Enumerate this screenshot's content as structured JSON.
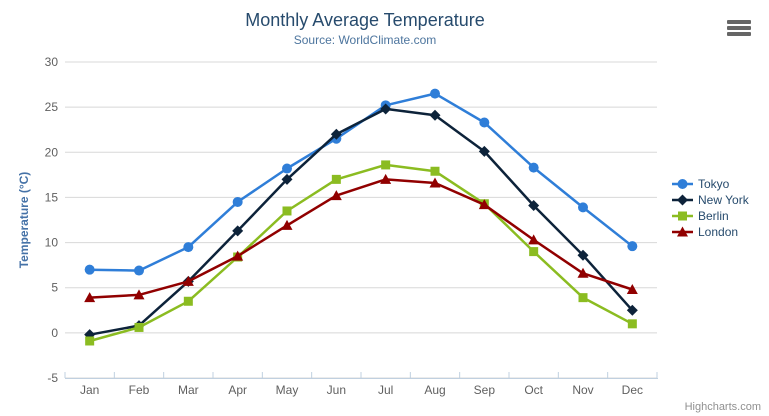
{
  "chart": {
    "title": "Monthly Average Temperature",
    "subtitle": "Source: WorldClimate.com",
    "y_axis_title": "Temperature (°C)",
    "credits": "Highcharts.com"
  },
  "colors": {
    "title_text": "#274b6d",
    "subtitle_text": "#4d759e",
    "y_axis_title_text": "#4572a7",
    "axis_labels": "#606060",
    "gridline": "#d8d8d8",
    "axis_line": "#c0d0e0",
    "legend_text": "#274b6d",
    "credits_text": "#909090",
    "export_icon": "#666666",
    "background": "#ffffff"
  },
  "chart_data": {
    "type": "line",
    "title": "Monthly Average Temperature",
    "subtitle": "Source: WorldClimate.com",
    "xlabel": "",
    "ylabel": "Temperature (°C)",
    "categories": [
      "Jan",
      "Feb",
      "Mar",
      "Apr",
      "May",
      "Jun",
      "Jul",
      "Aug",
      "Sep",
      "Oct",
      "Nov",
      "Dec"
    ],
    "ylim": [
      -5,
      30
    ],
    "y_tick_interval": 5,
    "grid": true,
    "legend_position": "right-middle",
    "series": [
      {
        "name": "Tokyo",
        "color": "#2f7ed8",
        "marker": "circle",
        "values": [
          7.0,
          6.9,
          9.5,
          14.5,
          18.2,
          21.5,
          25.2,
          26.5,
          23.3,
          18.3,
          13.9,
          9.6
        ]
      },
      {
        "name": "New York",
        "color": "#0d233a",
        "marker": "diamond",
        "values": [
          -0.2,
          0.8,
          5.7,
          11.3,
          17.0,
          22.0,
          24.8,
          24.1,
          20.1,
          14.1,
          8.6,
          2.5
        ]
      },
      {
        "name": "Berlin",
        "color": "#8bbc21",
        "marker": "square",
        "values": [
          -0.9,
          0.6,
          3.5,
          8.4,
          13.5,
          17.0,
          18.6,
          17.9,
          14.3,
          9.0,
          3.9,
          1.0
        ]
      },
      {
        "name": "London",
        "color": "#910000",
        "marker": "triangle",
        "values": [
          3.9,
          4.2,
          5.7,
          8.5,
          11.9,
          15.2,
          17.0,
          16.6,
          14.2,
          10.3,
          6.6,
          4.8
        ]
      }
    ]
  }
}
